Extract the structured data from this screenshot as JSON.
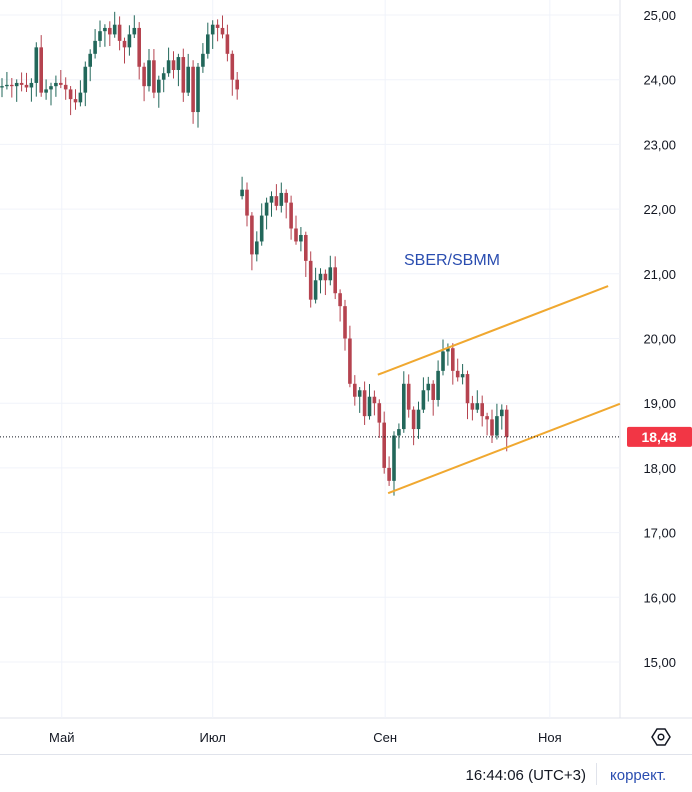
{
  "chart_data": {
    "type": "candlestick",
    "title": "SBER/SBMM",
    "y_ticks": [
      "15,00",
      "16,00",
      "17,00",
      "18,00",
      "19,00",
      "20,00",
      "21,00",
      "22,00",
      "23,00",
      "24,00",
      "25,00"
    ],
    "ylim": [
      14.25,
      25.25
    ],
    "x_ticks": [
      {
        "label": "Май",
        "index": 12.2
      },
      {
        "label": "Июл",
        "index": 43
      },
      {
        "label": "Сен",
        "index": 78.2
      },
      {
        "label": "Ноя",
        "index": 111.8
      }
    ],
    "closes": [
      23.9,
      23.92,
      23.9,
      23.95,
      23.92,
      23.88,
      23.95,
      24.5,
      23.8,
      23.85,
      23.9,
      23.95,
      23.92,
      23.85,
      23.7,
      23.65,
      23.8,
      24.2,
      24.4,
      24.6,
      24.75,
      24.8,
      24.7,
      24.85,
      24.6,
      24.5,
      24.7,
      24.8,
      24.2,
      23.9,
      24.3,
      23.8,
      24.0,
      24.1,
      24.3,
      24.15,
      24.35,
      23.8,
      24.2,
      23.5,
      24.2,
      24.4,
      24.7,
      24.85,
      24.8,
      24.7,
      24.4,
      24.0,
      23.85,
      22.3,
      21.9,
      21.3,
      21.5,
      21.9,
      22.1,
      22.2,
      22.05,
      22.25,
      22.1,
      21.7,
      21.5,
      21.6,
      21.2,
      20.6,
      20.9,
      21.0,
      20.9,
      21.1,
      20.7,
      20.5,
      20.0,
      19.3,
      19.1,
      19.2,
      18.8,
      19.1,
      19.0,
      18.7,
      18.0,
      17.8,
      18.5,
      18.6,
      19.3,
      18.9,
      18.6,
      18.9,
      19.2,
      19.3,
      19.05,
      19.5,
      19.8,
      19.85,
      19.5,
      19.4,
      19.45,
      19.0,
      18.9,
      19.0,
      18.8,
      18.75,
      18.5,
      18.8,
      18.9,
      18.48
    ],
    "first_open": 23.88,
    "gap_open": 22.2,
    "gap_index": 49,
    "channel": {
      "upper": [
        [
          76.7,
          19.44
        ],
        [
          123.7,
          20.81
        ]
      ],
      "lower": [
        [
          78.8,
          17.61
        ],
        [
          126.1,
          18.99
        ]
      ],
      "color": "#f0a830"
    },
    "last_price": 18.48,
    "last_price_label": "18,48",
    "colors": {
      "up": "#22675a",
      "down": "#b5434f",
      "price_label": "#f23645",
      "title": "#2a4db0"
    }
  },
  "footer": {
    "time": "16:44:06 (UTC+3)",
    "adjust_link": "коррект."
  }
}
